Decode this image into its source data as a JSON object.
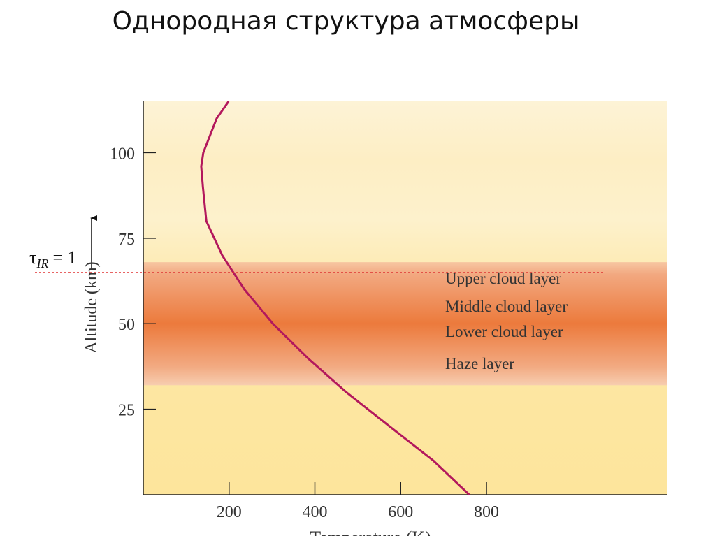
{
  "title": "Однородная структура атмосферы",
  "chart_data": {
    "type": "line",
    "xlabel": "Temperature (K)",
    "ylabel": "Altitude (km)",
    "xlim": [
      0,
      1222
    ],
    "ylim": [
      0,
      115
    ],
    "xticks": [
      200,
      400,
      600,
      800
    ],
    "yticks": [
      25,
      50,
      75,
      100
    ],
    "series": [
      {
        "color": "#b3185c",
        "x": [
          760,
          676,
          574,
          473,
          383,
          302,
          236,
          184,
          147,
          139,
          135,
          140,
          171,
          199
        ],
        "y": [
          0,
          10,
          20,
          30,
          40,
          50,
          60,
          70,
          80,
          90,
          96,
          100,
          110,
          115
        ]
      }
    ],
    "cloud_region": [
      32,
      68
    ],
    "reference_line": {
      "y": 65,
      "symbol": "τ",
      "subscript": "IR",
      "text": "= 1",
      "color": "#e03030"
    },
    "annotations": [
      "Upper cloud layer",
      "Middle cloud layer",
      "Lower cloud layer",
      "Haze layer"
    ]
  }
}
